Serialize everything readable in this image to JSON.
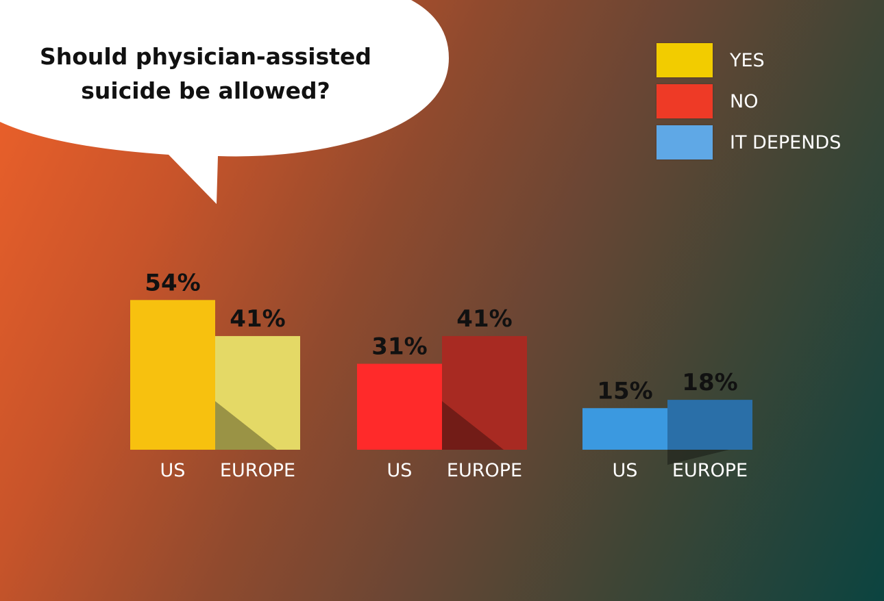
{
  "question": {
    "line1": "Should physician-assisted",
    "line2": "suicide be allowed?"
  },
  "legend": [
    {
      "label": "YES",
      "color": "#f2cc00"
    },
    {
      "label": "NO",
      "color": "#ee3a26"
    },
    {
      "label": "IT DEPENDS",
      "color": "#5fa8e6"
    }
  ],
  "chart_data": {
    "type": "bar",
    "title": "Should physician-assisted suicide be allowed?",
    "xlabel": "",
    "ylabel": "",
    "ylim": [
      0,
      60
    ],
    "grid": false,
    "legend_position": "top-right",
    "groups": [
      {
        "series": "YES",
        "bars": [
          {
            "category": "US",
            "value": 54,
            "label": "54%",
            "color": "#f7c10f"
          },
          {
            "category": "EUROPE",
            "value": 41,
            "label": "41%",
            "color": "#e4d966"
          }
        ]
      },
      {
        "series": "NO",
        "bars": [
          {
            "category": "US",
            "value": 31,
            "label": "31%",
            "color": "#ff2a2a"
          },
          {
            "category": "EUROPE",
            "value": 41,
            "label": "41%",
            "color": "#a82a22"
          }
        ]
      },
      {
        "series": "IT DEPENDS",
        "bars": [
          {
            "category": "US",
            "value": 15,
            "label": "15%",
            "color": "#3b99e0"
          },
          {
            "category": "EUROPE",
            "value": 18,
            "label": "18%",
            "color": "#2a6fa8"
          }
        ]
      }
    ]
  }
}
